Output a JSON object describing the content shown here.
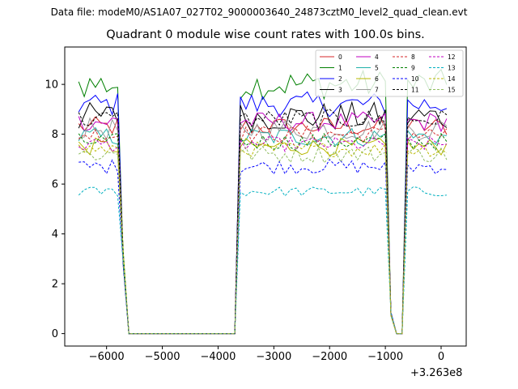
{
  "chart_data": {
    "type": "line",
    "suptitle": "Data file: modeM0/AS1A07_027T02_9000003640_24873cztM0_level2_quad_clean.evt",
    "title": "Quadrant 0 module wise count rates with 100.0s bins.",
    "xlabel": "",
    "ylabel": "",
    "x_offset_label": "+3.263e8",
    "xlim": [
      -6750,
      450
    ],
    "ylim": [
      -0.5,
      11.5
    ],
    "x_ticks": [
      -6000,
      -5000,
      -4000,
      -3000,
      -2000,
      -1000,
      0
    ],
    "x_tick_labels": [
      "−6000",
      "−5000",
      "−4000",
      "−3000",
      "−2000",
      "−1000",
      "0"
    ],
    "y_ticks": [
      0,
      2,
      4,
      6,
      8,
      10
    ],
    "y_tick_labels": [
      "0",
      "2",
      "4",
      "6",
      "8",
      "10"
    ],
    "grid": false,
    "legend_placement": "top-right",
    "legend_columns": 4,
    "segments": [
      [
        -6500,
        -5800
      ],
      [
        -3600,
        -1000
      ],
      [
        -600,
        100
      ]
    ],
    "low_x": [
      -5700,
      -5600,
      -3700,
      -900,
      -800
    ],
    "low_y": [
      3.0,
      0.0,
      0.0,
      0.8,
      0.0
    ],
    "series": [
      {
        "name": "0",
        "color": "#d62728",
        "dashed": false,
        "level": 8.3,
        "amp": 0.4
      },
      {
        "name": "1",
        "color": "#008000",
        "dashed": false,
        "level": 10.0,
        "amp": 0.6
      },
      {
        "name": "2",
        "color": "#0000ff",
        "dashed": false,
        "level": 9.2,
        "amp": 0.5
      },
      {
        "name": "3",
        "color": "#000000",
        "dashed": false,
        "level": 8.7,
        "amp": 0.6
      },
      {
        "name": "4",
        "color": "#c000c0",
        "dashed": false,
        "level": 8.5,
        "amp": 0.4
      },
      {
        "name": "5",
        "color": "#20b2aa",
        "dashed": false,
        "level": 7.9,
        "amp": 0.4
      },
      {
        "name": "6",
        "color": "#b8b800",
        "dashed": false,
        "level": 7.5,
        "amp": 0.35
      },
      {
        "name": "7",
        "color": "#999999",
        "dashed": false,
        "level": 8.2,
        "amp": 0.45
      },
      {
        "name": "8",
        "color": "#d62728",
        "dashed": true,
        "level": 8.0,
        "amp": 0.35
      },
      {
        "name": "9",
        "color": "#008000",
        "dashed": true,
        "level": 7.7,
        "amp": 0.35
      },
      {
        "name": "10",
        "color": "#0000ff",
        "dashed": true,
        "level": 6.7,
        "amp": 0.3
      },
      {
        "name": "11",
        "color": "#000000",
        "dashed": true,
        "level": 8.6,
        "amp": 0.4
      },
      {
        "name": "12",
        "color": "#c000c0",
        "dashed": true,
        "level": 7.6,
        "amp": 0.3
      },
      {
        "name": "13",
        "color": "#00b0c0",
        "dashed": true,
        "level": 5.7,
        "amp": 0.2
      },
      {
        "name": "14",
        "color": "#b8b800",
        "dashed": true,
        "level": 7.4,
        "amp": 0.3
      },
      {
        "name": "15",
        "color": "#8fbc5f",
        "dashed": true,
        "level": 7.2,
        "amp": 0.35
      }
    ]
  }
}
